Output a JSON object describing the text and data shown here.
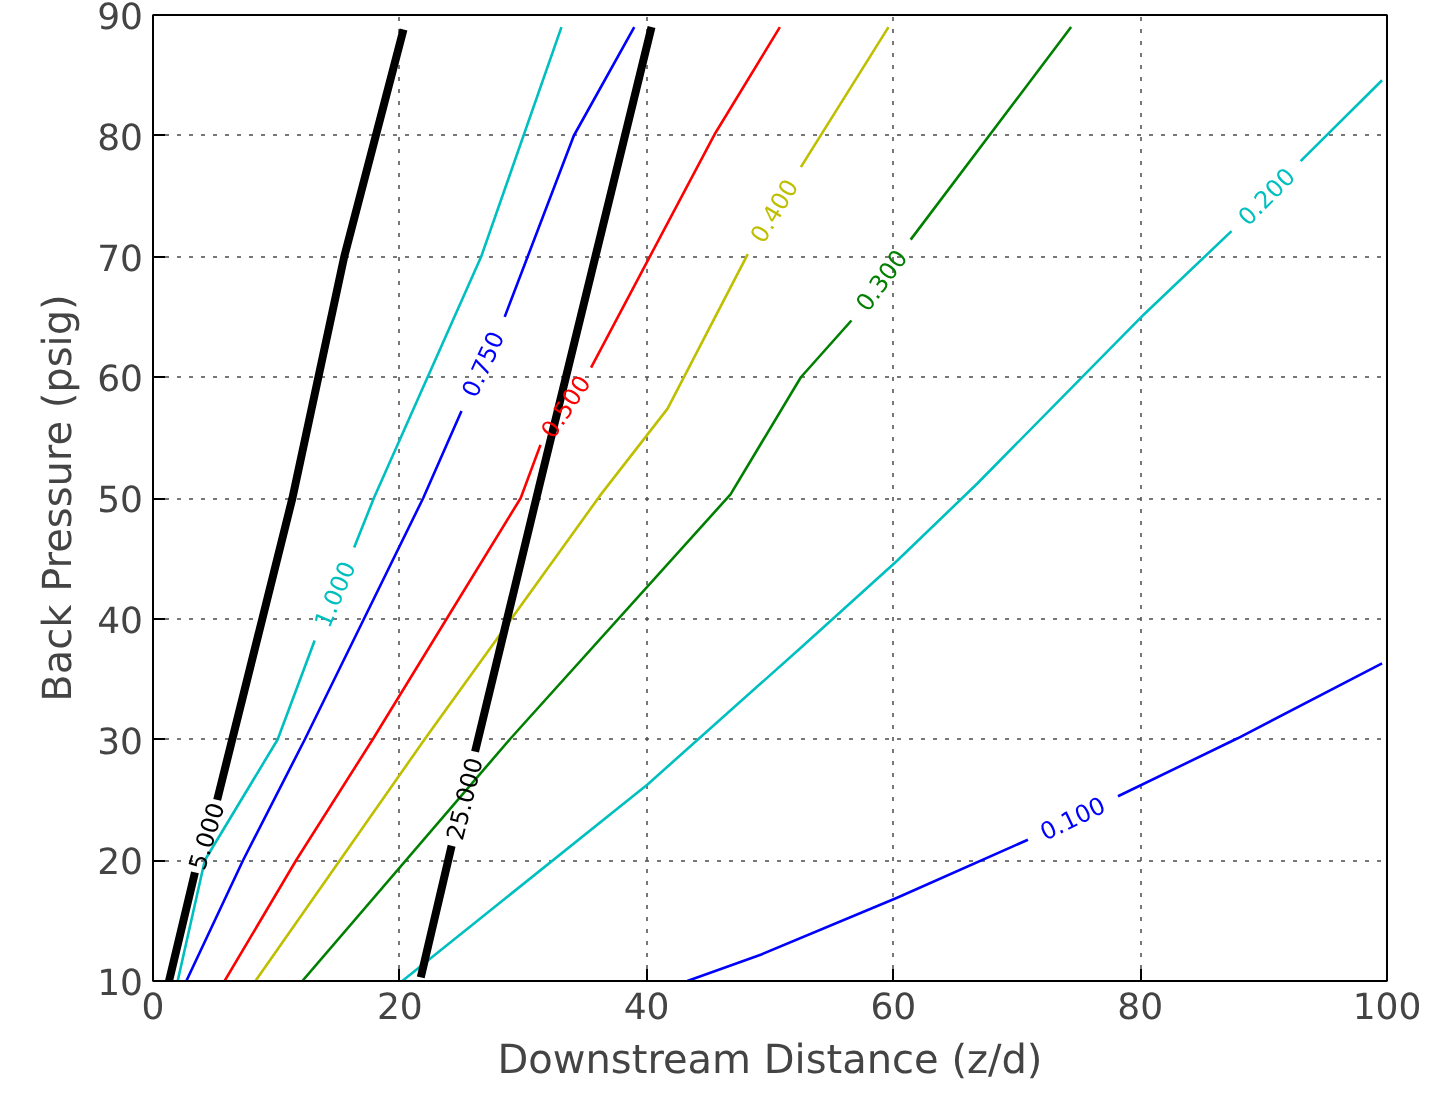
{
  "chart_data": {
    "type": "line",
    "xlabel": "Downstream Distance (z/d)",
    "ylabel": "Back Pressure (psig)",
    "xlim": [
      0,
      100
    ],
    "ylim": [
      10,
      90
    ],
    "xticks": [
      0,
      20,
      40,
      60,
      80,
      100
    ],
    "yticks": [
      10,
      20,
      30,
      40,
      50,
      60,
      70,
      80,
      90
    ],
    "grid": true,
    "series": [
      {
        "name": "5.000",
        "color": "#000000",
        "x": [
          1.3,
          3.4,
          4.3,
          5.2,
          11.3,
          15.5,
          20.3
        ],
        "values": [
          10,
          19.0,
          null,
          25.0,
          50,
          70,
          88.8
        ]
      },
      {
        "name": "1.000",
        "color": "#00bfbf",
        "x": [
          2.0,
          4.2,
          10.1,
          13.1,
          14.7,
          16.3,
          17.9,
          26.6,
          33.1
        ],
        "values": [
          10,
          20,
          30,
          38.2,
          null,
          45.9,
          50,
          70,
          89
        ]
      },
      {
        "name": "0.750",
        "color": "#0000ff",
        "x": [
          2.7,
          7.3,
          12.3,
          17.1,
          21.9,
          25.0,
          26.7,
          28.5,
          34.1,
          39.0
        ],
        "values": [
          10,
          20,
          30,
          40,
          50,
          57.2,
          null,
          65,
          80,
          89
        ]
      },
      {
        "name": "0.500",
        "color": "#ff0000",
        "x": [
          5.8,
          11.6,
          17.8,
          23.8,
          29.8,
          31.4,
          33.4,
          35.5,
          45.5,
          50.8
        ],
        "values": [
          10,
          20,
          30,
          40,
          50,
          54.4,
          null,
          60.8,
          80.1,
          89
        ]
      },
      {
        "name": "0.400",
        "color": "#bfbf00",
        "x": [
          8.3,
          22.0,
          36.3,
          41.7,
          48.2,
          50.3,
          52.5,
          59.6
        ],
        "values": [
          10,
          30,
          50.3,
          57.4,
          70.2,
          null,
          77.4,
          89
        ]
      },
      {
        "name": "0.300",
        "color": "#008000",
        "x": [
          12.1,
          28.9,
          46.8,
          52.5,
          56.6,
          59.0,
          61.4,
          74.4
        ],
        "values": [
          10,
          30,
          50.3,
          60,
          64.7,
          null,
          71.4,
          89
        ]
      },
      {
        "name": "0.200",
        "color": "#00bfbf",
        "x": [
          20.2,
          40.1,
          52.5,
          60.3,
          66.8,
          80.3,
          87.4,
          90.2,
          93.0,
          99.6
        ],
        "values": [
          10,
          26.3,
          37.6,
          44.8,
          51.2,
          65.2,
          72.1,
          null,
          77.9,
          84.6
        ]
      },
      {
        "name": "0.100",
        "color": "#0000ff",
        "x": [
          43.3,
          49.3,
          60.3,
          70.9,
          74.5,
          78.2,
          87.9,
          99.6
        ],
        "values": [
          10,
          12.2,
          16.9,
          21.7,
          null,
          25.3,
          30.1,
          36.3
        ]
      },
      {
        "name": "25.000",
        "color": "#000000",
        "x": [
          21.7,
          24.2,
          25.2,
          26.1,
          31.4,
          40.4
        ],
        "values": [
          10.3,
          21.2,
          null,
          29.0,
          51.4,
          89
        ]
      }
    ]
  }
}
